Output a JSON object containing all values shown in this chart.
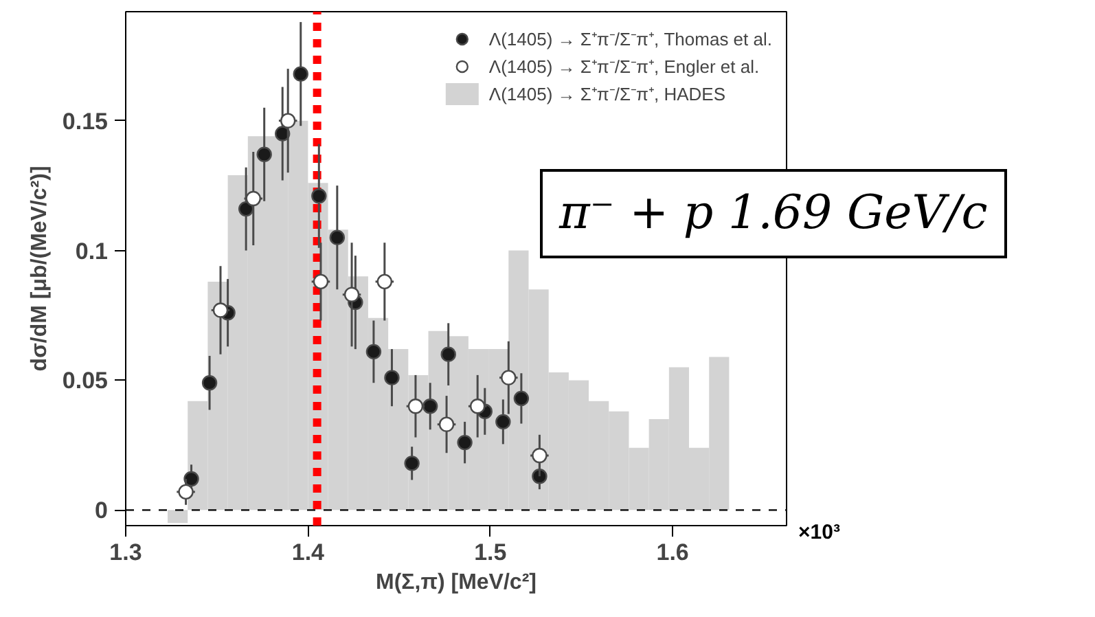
{
  "chart_data": {
    "type": "histogram",
    "xlabel": "M(Σ,π) [MeV/c²]",
    "ylabel": "dσ/dM [μb/(MeV/c²)]",
    "xlim": [
      1.3,
      1.6625
    ],
    "ylim": [
      -0.006,
      0.192
    ],
    "xticks": [
      1.3,
      1.4,
      1.5,
      1.6
    ],
    "yticks": [
      0,
      0.05,
      0.1,
      0.15
    ],
    "grid": false,
    "legend": "top right",
    "marker": "circle",
    "series": [
      {
        "name": "Λ(1405) → Σ⁺π⁻/Σ⁻π⁺, HADES",
        "color": "#d3d3d3",
        "bins": [
          1.323,
          1.334,
          1.345,
          1.356,
          1.367,
          1.378,
          1.389,
          1.4,
          1.411,
          1.422,
          1.433,
          1.444,
          1.455,
          1.466,
          1.477,
          1.488,
          1.499,
          1.51,
          1.521,
          1.532,
          1.543,
          1.554,
          1.565,
          1.576,
          1.587,
          1.598,
          1.609,
          1.62,
          1.631
        ],
        "values": [
          -0.005,
          0.042,
          0.088,
          0.129,
          0.144,
          0.144,
          0.15,
          0.126,
          0.108,
          0.09,
          0.074,
          0.062,
          0.052,
          0.069,
          0.067,
          0.062,
          0.062,
          0.1,
          0.085,
          0.053,
          0.05,
          0.042,
          0.038,
          0.024,
          0.035,
          0.055,
          0.024,
          0.059
        ]
      },
      {
        "type": "scatter",
        "name": "Λ(1405) → Σ⁺π⁻/Σ⁻π⁺, Thomas et al.",
        "color": "#1a1a1a",
        "x": [
          1.336,
          1.346,
          1.356,
          1.366,
          1.376,
          1.386,
          1.396,
          1.406,
          1.416,
          1.426,
          1.436,
          1.446,
          1.457,
          1.467,
          1.477,
          1.486,
          1.497,
          1.507,
          1.517,
          1.527
        ],
        "values": [
          0.012,
          0.049,
          0.076,
          0.116,
          0.137,
          0.145,
          0.168,
          0.121,
          0.105,
          0.08,
          0.061,
          0.051,
          0.018,
          0.04,
          0.06,
          0.026,
          0.038,
          0.034,
          0.043,
          0.013
        ],
        "errors": [
          0.0055,
          0.0104,
          0.013,
          0.016,
          0.018,
          0.018,
          0.02,
          0.02,
          0.02,
          0.018,
          0.012,
          0.011,
          0.0064,
          0.009,
          0.012,
          0.008,
          0.009,
          0.0086,
          0.0097,
          0.005
        ],
        "xerrors": [
          0.003,
          0.003,
          0.003,
          0.003,
          0.003,
          0.003,
          0.003,
          0.003,
          0.003,
          0.003,
          0.003,
          0.003,
          0.003,
          0.003,
          0.003,
          0.003,
          0.003,
          0.003,
          0.003,
          0.003
        ]
      },
      {
        "type": "scatter",
        "name": "Λ(1405) → Σ⁺π⁻/Σ⁻π⁺, Engler et al.",
        "color": "#ffffff",
        "x": [
          1.333,
          1.352,
          1.37,
          1.389,
          1.407,
          1.424,
          1.442,
          1.459,
          1.476,
          1.493,
          1.51,
          1.527
        ],
        "values": [
          0.007,
          0.077,
          0.12,
          0.15,
          0.088,
          0.083,
          0.088,
          0.04,
          0.033,
          0.04,
          0.051,
          0.021
        ],
        "errors": [
          0.005,
          0.017,
          0.018,
          0.02,
          0.015,
          0.02,
          0.015,
          0.012,
          0.011,
          0.012,
          0.014,
          0.008
        ],
        "xerrors": [
          0.005,
          0.005,
          0.005,
          0.005,
          0.005,
          0.005,
          0.005,
          0.005,
          0.005,
          0.005,
          0.005,
          0.005
        ]
      }
    ],
    "ref_lines": [
      {
        "axis": "y",
        "value": 0,
        "color": "#000000",
        "line_style": "dashed"
      },
      {
        "axis": "x",
        "value": 1.405,
        "color": "#ff0000",
        "line_style": "dashed"
      }
    ],
    "annotations": [
      "×10³",
      "π⁻ + p  1.69 GeV/c"
    ]
  }
}
